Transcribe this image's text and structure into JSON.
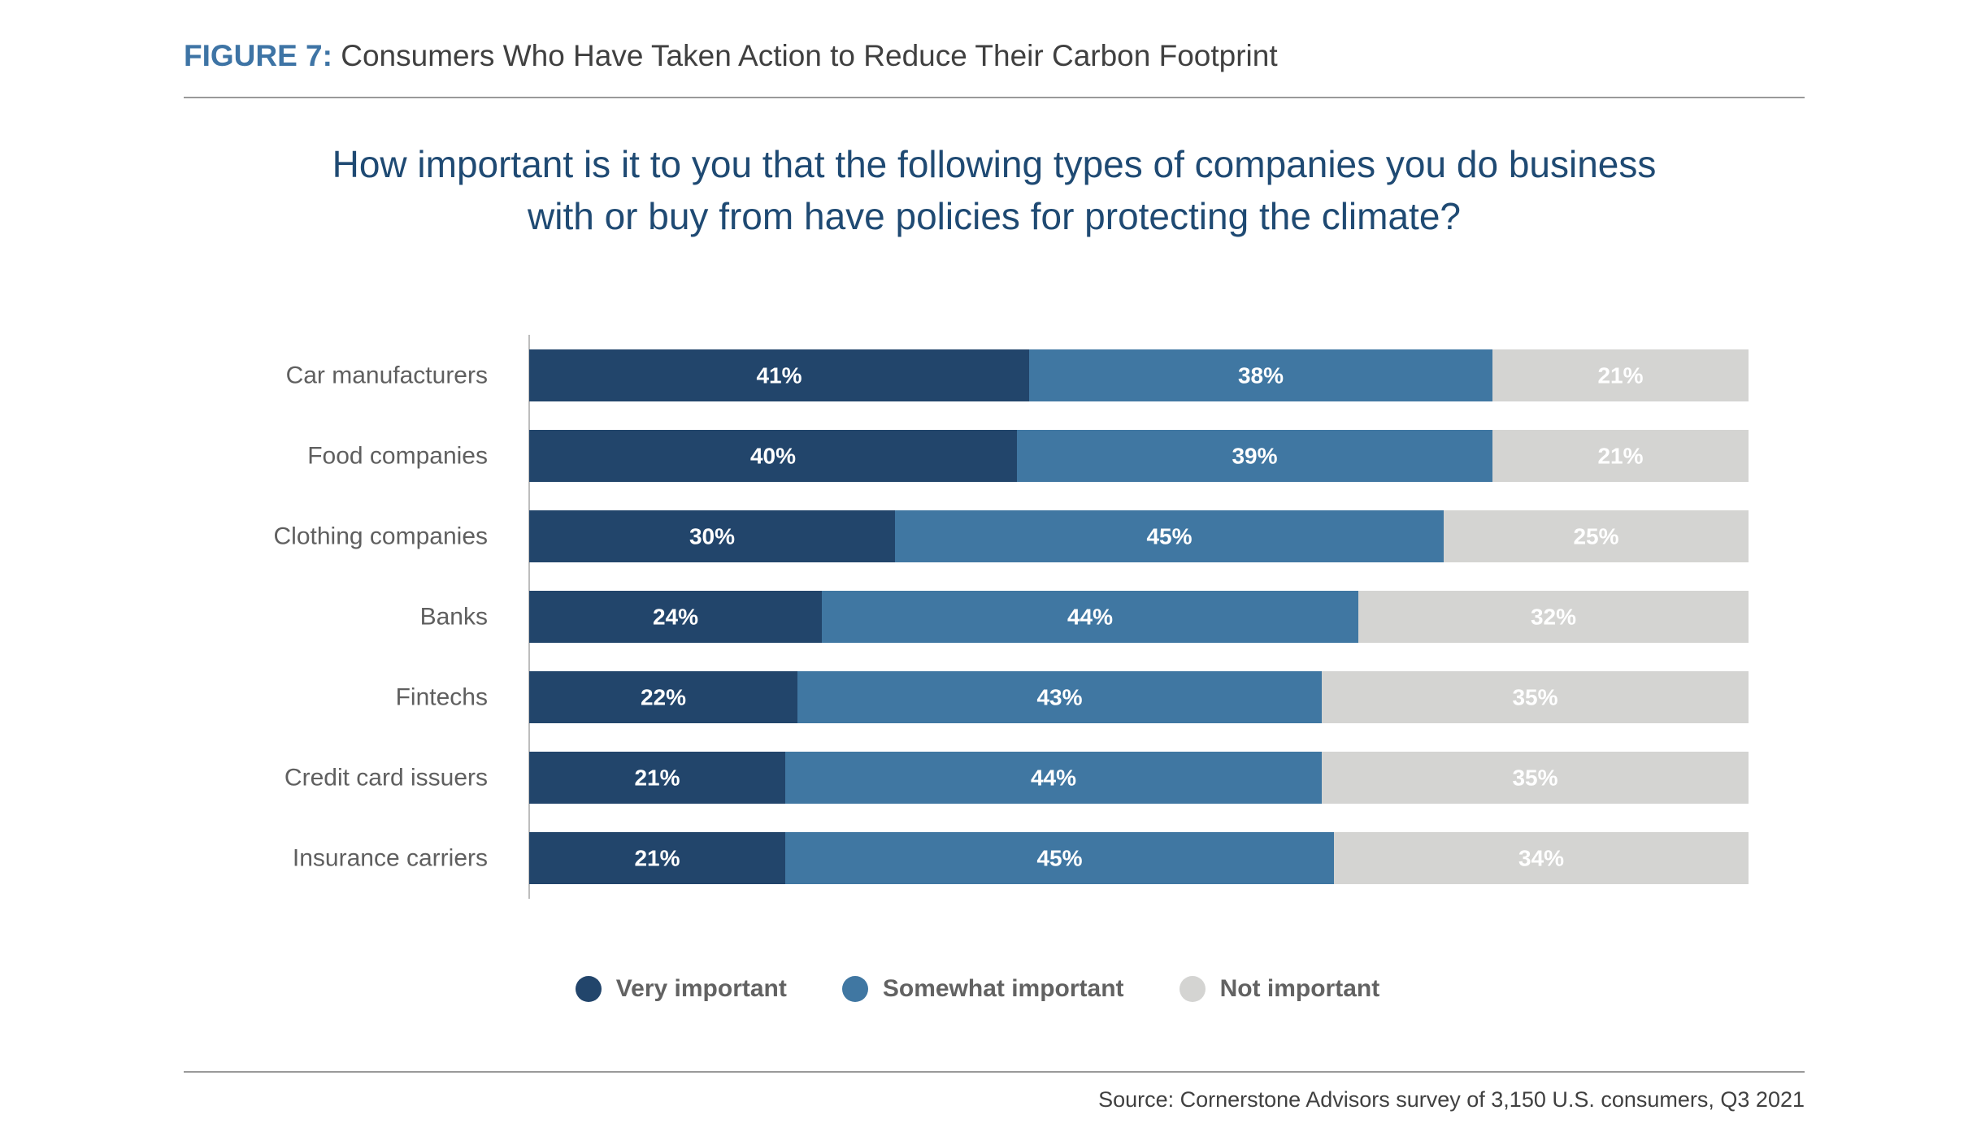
{
  "header": {
    "figure_label": "FIGURE 7:",
    "figure_title": "Consumers Who Have Taken Action to Reduce Their Carbon Footprint"
  },
  "question": {
    "line1": "How important is it to you that the following types of companies you do business",
    "line2": "with or buy from have policies for protecting the climate?"
  },
  "source": "Source: Cornerstone Advisors survey of 3,150 U.S. consumers, Q3 2021",
  "colors": {
    "very": "#22456b",
    "somewhat": "#4077a2",
    "not": "#d4d4d2",
    "category_text": "#5f5f5f"
  },
  "chart_data": {
    "type": "bar",
    "orientation": "horizontal",
    "stacked": true,
    "categories": [
      "Car manufacturers",
      "Food companies",
      "Clothing companies",
      "Banks",
      "Fintechs",
      "Credit card issuers",
      "Insurance carriers"
    ],
    "series": [
      {
        "name": "Very important",
        "color": "#22456b",
        "values": [
          41,
          40,
          30,
          24,
          22,
          21,
          21
        ]
      },
      {
        "name": "Somewhat important",
        "color": "#4077a2",
        "values": [
          38,
          39,
          45,
          44,
          43,
          44,
          45
        ]
      },
      {
        "name": "Not important",
        "color": "#d4d4d2",
        "values": [
          21,
          21,
          25,
          32,
          35,
          35,
          34
        ]
      }
    ],
    "value_suffix": "%",
    "xlim": [
      0,
      100
    ],
    "grid": false,
    "legend_position": "bottom"
  }
}
